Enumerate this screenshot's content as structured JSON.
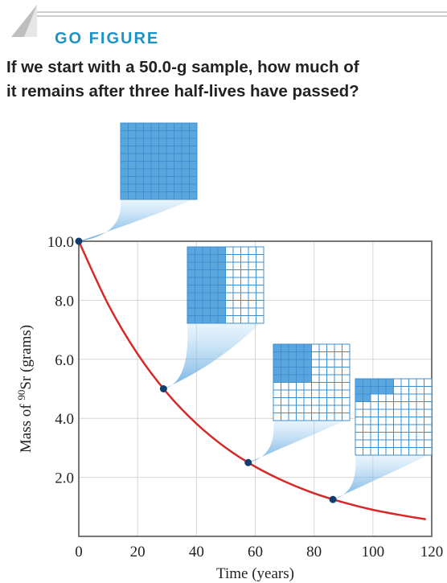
{
  "header": {
    "label": "GO FIGURE",
    "question": [
      "If we start with a 50.0-g sample, how much of",
      "it remains after three half-lives have passed?"
    ]
  },
  "chart_data": {
    "type": "line",
    "x_label": "Time (years)",
    "y_label": {
      "before": "Mass of ",
      "superscript": "90",
      "after": "Sr (grams)"
    },
    "xlim": [
      0,
      120
    ],
    "ylim": [
      0,
      10
    ],
    "xticks": [
      0,
      20,
      40,
      60,
      80,
      100,
      120
    ],
    "yticks": [
      {
        "value": 2,
        "label": "2.0"
      },
      {
        "value": 4,
        "label": "4.0"
      },
      {
        "value": 6,
        "label": "6.0"
      },
      {
        "value": 8,
        "label": "8.0"
      },
      {
        "value": 10,
        "label": "10.0"
      }
    ],
    "grid": true,
    "series": [
      {
        "color": "#d62a2a",
        "x": [
          0,
          10,
          20,
          30,
          40,
          50,
          60,
          70,
          80,
          90,
          100,
          110,
          118
        ],
        "values": [
          10,
          7.86,
          6.18,
          4.86,
          3.82,
          3.0,
          2.36,
          1.86,
          1.46,
          1.15,
          0.9,
          0.71,
          0.58
        ]
      },
      {
        "color": "#123d6e",
        "x": [
          0,
          28.8,
          57.6,
          86.4
        ],
        "values": [
          10,
          5,
          2.5,
          1.25
        ]
      }
    ]
  }
}
